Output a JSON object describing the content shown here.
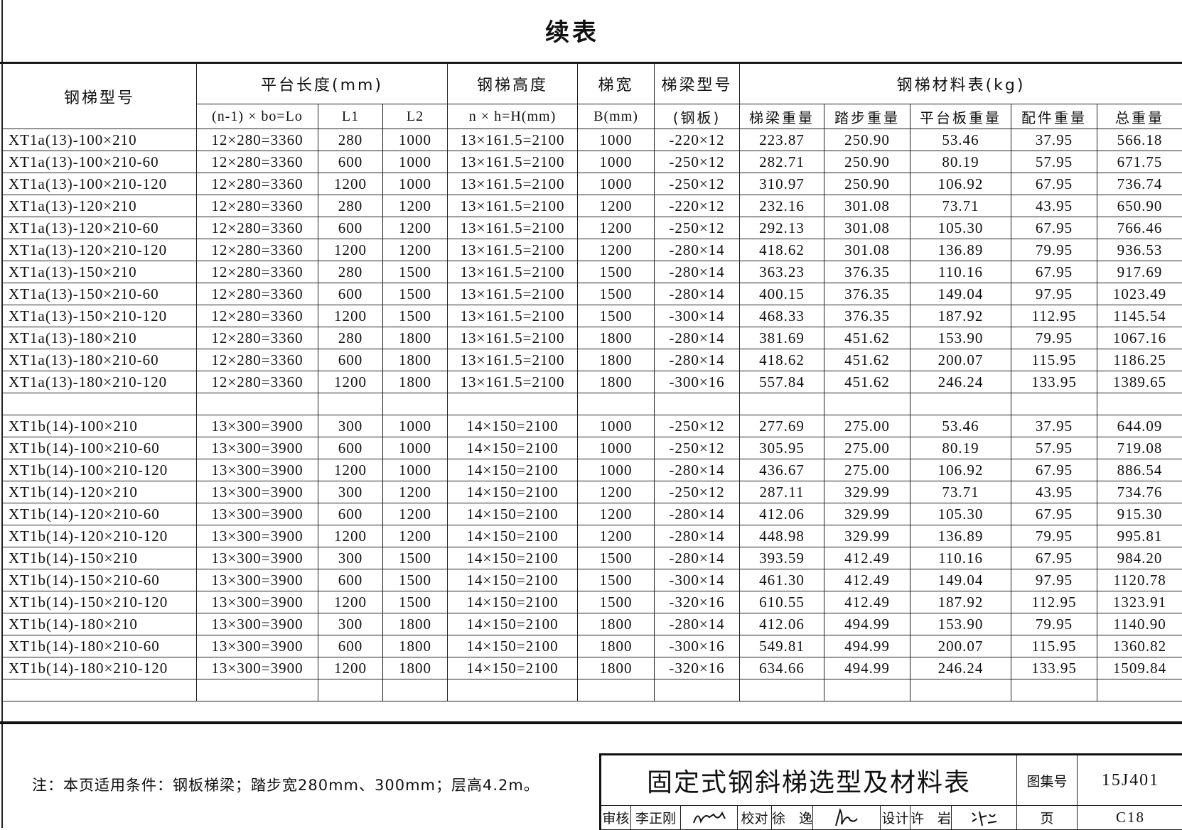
{
  "page_title": "续表",
  "table": {
    "header_row1": [
      "钢梯型号",
      "平台长度(mm)",
      "钢梯高度",
      "梯宽",
      "梯梁型号",
      "钢梯材料表(kg)"
    ],
    "header_row2": [
      "(n-1) × bo=Lo",
      "L1",
      "L2",
      "n × h=H(mm)",
      "B(mm)",
      "(钢板)",
      "梯梁重量",
      "踏步重量",
      "平台板重量",
      "配件重量",
      "总重量"
    ],
    "rows": [
      [
        "XT1a(13)-100×210",
        "12×280=3360",
        "280",
        "1000",
        "13×161.5=2100",
        "1000",
        "-220×12",
        "223.87",
        "250.90",
        "53.46",
        "37.95",
        "566.18"
      ],
      [
        "XT1a(13)-100×210-60",
        "12×280=3360",
        "600",
        "1000",
        "13×161.5=2100",
        "1000",
        "-250×12",
        "282.71",
        "250.90",
        "80.19",
        "57.95",
        "671.75"
      ],
      [
        "XT1a(13)-100×210-120",
        "12×280=3360",
        "1200",
        "1000",
        "13×161.5=2100",
        "1000",
        "-250×12",
        "310.97",
        "250.90",
        "106.92",
        "67.95",
        "736.74"
      ],
      [
        "XT1a(13)-120×210",
        "12×280=3360",
        "280",
        "1200",
        "13×161.5=2100",
        "1200",
        "-220×12",
        "232.16",
        "301.08",
        "73.71",
        "43.95",
        "650.90"
      ],
      [
        "XT1a(13)-120×210-60",
        "12×280=3360",
        "600",
        "1200",
        "13×161.5=2100",
        "1200",
        "-250×12",
        "292.13",
        "301.08",
        "105.30",
        "67.95",
        "766.46"
      ],
      [
        "XT1a(13)-120×210-120",
        "12×280=3360",
        "1200",
        "1200",
        "13×161.5=2100",
        "1200",
        "-280×14",
        "418.62",
        "301.08",
        "136.89",
        "79.95",
        "936.53"
      ],
      [
        "XT1a(13)-150×210",
        "12×280=3360",
        "280",
        "1500",
        "13×161.5=2100",
        "1500",
        "-280×14",
        "363.23",
        "376.35",
        "110.16",
        "67.95",
        "917.69"
      ],
      [
        "XT1a(13)-150×210-60",
        "12×280=3360",
        "600",
        "1500",
        "13×161.5=2100",
        "1500",
        "-280×14",
        "400.15",
        "376.35",
        "149.04",
        "97.95",
        "1023.49"
      ],
      [
        "XT1a(13)-150×210-120",
        "12×280=3360",
        "1200",
        "1500",
        "13×161.5=2100",
        "1500",
        "-300×14",
        "468.33",
        "376.35",
        "187.92",
        "112.95",
        "1145.54"
      ],
      [
        "XT1a(13)-180×210",
        "12×280=3360",
        "280",
        "1800",
        "13×161.5=2100",
        "1800",
        "-280×14",
        "381.69",
        "451.62",
        "153.90",
        "79.95",
        "1067.16"
      ],
      [
        "XT1a(13)-180×210-60",
        "12×280=3360",
        "600",
        "1800",
        "13×161.5=2100",
        "1800",
        "-280×14",
        "418.62",
        "451.62",
        "200.07",
        "115.95",
        "1186.25"
      ],
      [
        "XT1a(13)-180×210-120",
        "12×280=3360",
        "1200",
        "1800",
        "13×161.5=2100",
        "1800",
        "-300×16",
        "557.84",
        "451.62",
        "246.24",
        "133.95",
        "1389.65"
      ],
      [
        "",
        "",
        "",
        "",
        "",
        "",
        "",
        "",
        "",
        "",
        "",
        ""
      ],
      [
        "XT1b(14)-100×210",
        "13×300=3900",
        "300",
        "1000",
        "14×150=2100",
        "1000",
        "-250×12",
        "277.69",
        "275.00",
        "53.46",
        "37.95",
        "644.09"
      ],
      [
        "XT1b(14)-100×210-60",
        "13×300=3900",
        "600",
        "1000",
        "14×150=2100",
        "1000",
        "-250×12",
        "305.95",
        "275.00",
        "80.19",
        "57.95",
        "719.08"
      ],
      [
        "XT1b(14)-100×210-120",
        "13×300=3900",
        "1200",
        "1000",
        "14×150=2100",
        "1000",
        "-280×14",
        "436.67",
        "275.00",
        "106.92",
        "67.95",
        "886.54"
      ],
      [
        "XT1b(14)-120×210",
        "13×300=3900",
        "300",
        "1200",
        "14×150=2100",
        "1200",
        "-250×12",
        "287.11",
        "329.99",
        "73.71",
        "43.95",
        "734.76"
      ],
      [
        "XT1b(14)-120×210-60",
        "13×300=3900",
        "600",
        "1200",
        "14×150=2100",
        "1200",
        "-280×14",
        "412.06",
        "329.99",
        "105.30",
        "67.95",
        "915.30"
      ],
      [
        "XT1b(14)-120×210-120",
        "13×300=3900",
        "1200",
        "1200",
        "14×150=2100",
        "1200",
        "-280×14",
        "448.98",
        "329.99",
        "136.89",
        "79.95",
        "995.81"
      ],
      [
        "XT1b(14)-150×210",
        "13×300=3900",
        "300",
        "1500",
        "14×150=2100",
        "1500",
        "-280×14",
        "393.59",
        "412.49",
        "110.16",
        "67.95",
        "984.20"
      ],
      [
        "XT1b(14)-150×210-60",
        "13×300=3900",
        "600",
        "1500",
        "14×150=2100",
        "1500",
        "-300×14",
        "461.30",
        "412.49",
        "149.04",
        "97.95",
        "1120.78"
      ],
      [
        "XT1b(14)-150×210-120",
        "13×300=3900",
        "1200",
        "1500",
        "14×150=2100",
        "1500",
        "-320×16",
        "610.55",
        "412.49",
        "187.92",
        "112.95",
        "1323.91"
      ],
      [
        "XT1b(14)-180×210",
        "13×300=3900",
        "300",
        "1800",
        "14×150=2100",
        "1800",
        "-280×14",
        "412.06",
        "494.99",
        "153.90",
        "79.95",
        "1140.90"
      ],
      [
        "XT1b(14)-180×210-60",
        "13×300=3900",
        "600",
        "1800",
        "14×150=2100",
        "1800",
        "-300×16",
        "549.81",
        "494.99",
        "200.07",
        "115.95",
        "1360.82"
      ],
      [
        "XT1b(14)-180×210-120",
        "13×300=3900",
        "1200",
        "1800",
        "14×150=2100",
        "1800",
        "-320×16",
        "634.66",
        "494.99",
        "246.24",
        "133.95",
        "1509.84"
      ],
      [
        "",
        "",
        "",
        "",
        "",
        "",
        "",
        "",
        "",
        "",
        "",
        ""
      ]
    ]
  },
  "note": "注：本页适用条件：钢板梯梁；踏步宽280mm、300mm；层高4.2m。",
  "title_block": {
    "drawing_title": "固定式钢斜梯选型及材料表",
    "atlas_label": "图集号",
    "atlas_no": "15J401",
    "review_label": "审核",
    "reviewer": "李正刚",
    "check_label": "校对",
    "checker": "徐　逸",
    "design_label": "设计",
    "designer": "许　岩",
    "page_label": "页",
    "page_no": "C18"
  }
}
